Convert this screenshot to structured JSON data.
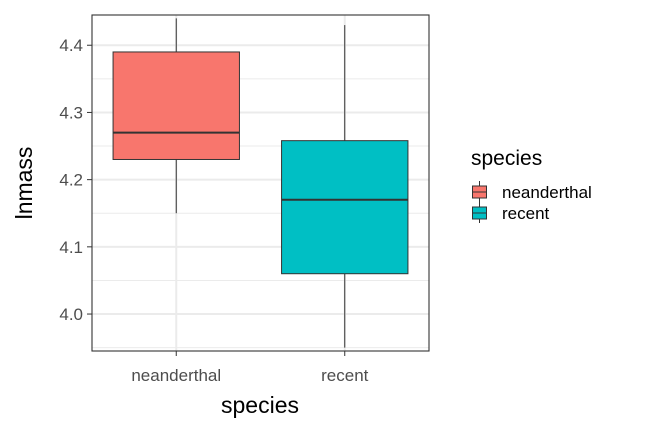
{
  "chart_data": {
    "type": "box",
    "xlabel": "species",
    "ylabel": "lnmass",
    "categories": [
      "neanderthal",
      "recent"
    ],
    "ylim": [
      3.945,
      4.445
    ],
    "y_ticks": [
      4.0,
      4.1,
      4.2,
      4.3,
      4.4
    ],
    "y_tick_labels": [
      "4.0",
      "4.1",
      "4.2",
      "4.3",
      "4.4"
    ],
    "grid": true,
    "legend": {
      "title": "species",
      "position": "right",
      "entries": [
        "neanderthal",
        "recent"
      ]
    },
    "series": [
      {
        "name": "neanderthal",
        "color": "#F8766D",
        "min": 4.15,
        "q1": 4.23,
        "median": 4.27,
        "q3": 4.39,
        "max": 4.44
      },
      {
        "name": "recent",
        "color": "#00BFC4",
        "min": 3.95,
        "q1": 4.06,
        "median": 4.17,
        "q3": 4.258,
        "max": 4.43
      }
    ]
  }
}
